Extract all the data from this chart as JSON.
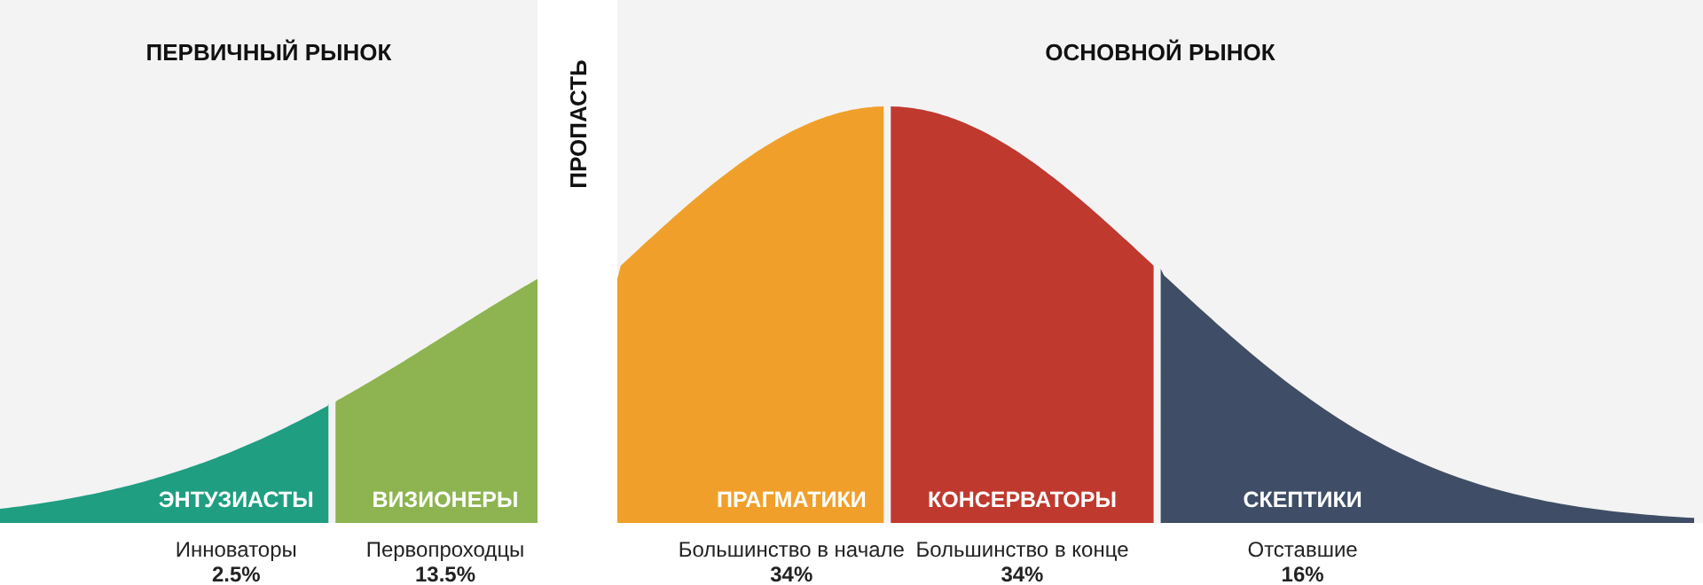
{
  "chart_data": {
    "type": "other",
    "categories": [
      "Инноваторы",
      "Первопроходцы",
      "Большинство в начале",
      "Большинство в конце",
      "Отставшие"
    ],
    "values": [
      2.5,
      13.5,
      34,
      34,
      16
    ],
    "value_labels": [
      "2.5%",
      "13.5%",
      "34%",
      "34%",
      "16%"
    ],
    "colors": [
      "#1f9e81",
      "#8db450",
      "#f0a02a",
      "#c0392f",
      "#3f4e66"
    ],
    "annotations": [
      "ПЕРВИЧНЫЙ РЫНОК",
      "ПРОПАСТЬ",
      "ОСНОВНОЙ РЫНОК",
      {
        "text": "ЭНТУЗИАСТЫ",
        "x": "Инноваторы"
      },
      {
        "text": "ВИЗИОНЕРЫ",
        "x": "Первопроходцы"
      },
      {
        "text": "ПРАГМАТИКИ",
        "x": "Большинство в начале"
      },
      {
        "text": "КОНСЕРВАТОРЫ",
        "x": "Большинство в конце"
      },
      {
        "text": "СКЕПТИКИ",
        "x": "Отставшие"
      }
    ]
  }
}
